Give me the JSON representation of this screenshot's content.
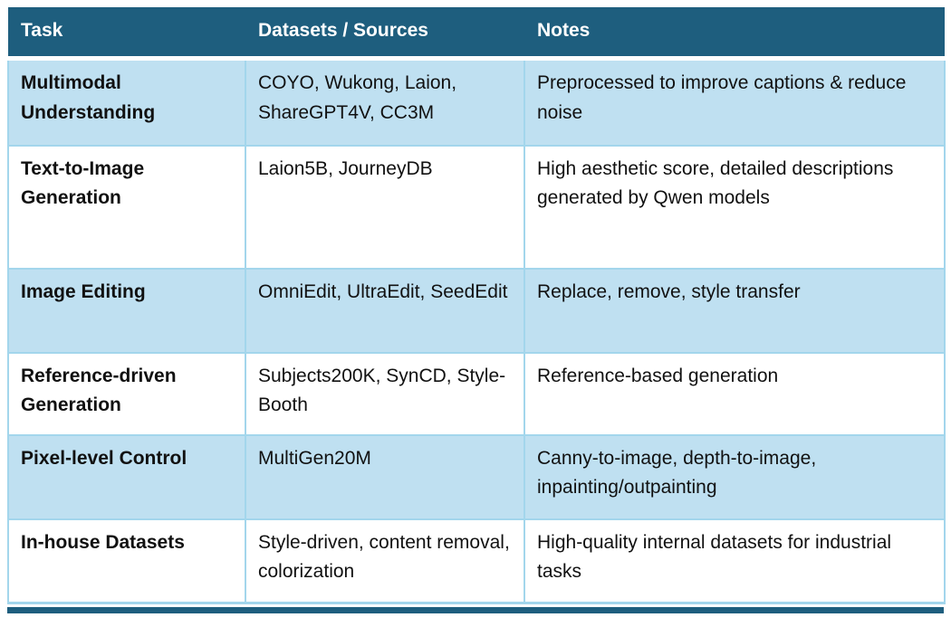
{
  "colors": {
    "header_bg": "#1e5e7e",
    "header_text": "#ffffff",
    "row_alt_bg": "#bfe0f1",
    "row_plain_bg": "#ffffff",
    "cell_border": "#a3d6ec",
    "body_text": "#111111"
  },
  "table": {
    "columns": [
      "Task",
      "Datasets / Sources",
      "Notes"
    ],
    "rows": [
      {
        "task": "Multimodal Understanding",
        "datasets": "COYO, Wukong, Laion, ShareGPT4V, CC3M",
        "notes": "Preprocessed to improve captions & reduce noise"
      },
      {
        "task": "Text-to-Image Generation",
        "datasets": "Laion5B, JourneyDB",
        "notes": "High aesthetic score, detailed descriptions generated by Qwen models"
      },
      {
        "task": "Image Editing",
        "datasets": "OmniEdit, UltraEdit, SeedEdit",
        "notes": "Replace, remove, style transfer"
      },
      {
        "task": "Reference-driven Generation",
        "datasets": "Subjects200K, SynCD, Style-Booth",
        "notes": "Reference-based generation"
      },
      {
        "task": "Pixel-level Control",
        "datasets": "MultiGen20M",
        "notes": "Canny-to-image, depth-to-image, inpainting/outpainting"
      },
      {
        "task": "In-house Datasets",
        "datasets": "Style-driven, content removal, colorization",
        "notes": "High-quality internal datasets for industrial tasks"
      }
    ]
  },
  "chart_data": {
    "type": "table",
    "title": "",
    "columns": [
      "Task",
      "Datasets / Sources",
      "Notes"
    ],
    "rows": [
      [
        "Multimodal Understanding",
        "COYO, Wukong, Laion, ShareGPT4V, CC3M",
        "Preprocessed to improve captions & reduce noise"
      ],
      [
        "Text-to-Image Generation",
        "Laion5B, JourneyDB",
        "High aesthetic score, detailed descriptions generated by Qwen models"
      ],
      [
        "Image Editing",
        "OmniEdit, UltraEdit, SeedEdit",
        "Replace, remove, style transfer"
      ],
      [
        "Reference-driven Generation",
        "Subjects200K, SynCD, Style-Booth",
        "Reference-based generation"
      ],
      [
        "Pixel-level Control",
        "MultiGen20M",
        "Canny-to-image, depth-to-image, inpainting/outpainting"
      ],
      [
        "In-house Datasets",
        "Style-driven, content removal, colorization",
        "High-quality internal datasets for industrial tasks"
      ]
    ]
  }
}
